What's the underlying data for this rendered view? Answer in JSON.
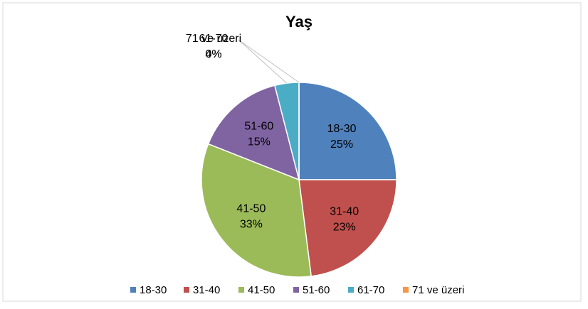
{
  "chart_data": {
    "type": "pie",
    "title": "Yaş",
    "categories": [
      "18-30",
      "31-40",
      "41-50",
      "51-60",
      "61-70",
      "71 ve üzeri"
    ],
    "values": [
      25,
      23,
      33,
      15,
      4,
      0
    ],
    "value_labels": [
      "25%",
      "23%",
      "33%",
      "15%",
      "4%",
      "0%"
    ],
    "colors": [
      "#4f81bd",
      "#c0504d",
      "#9bbb59",
      "#8064a2",
      "#4bacc6",
      "#f79646"
    ],
    "legend": "bottom"
  }
}
